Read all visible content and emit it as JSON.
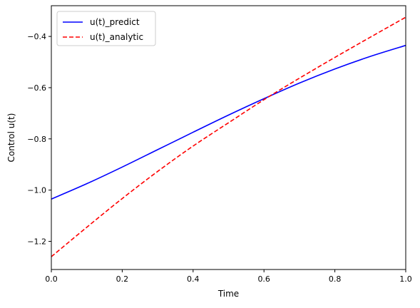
{
  "chart_data": {
    "type": "line",
    "title": "",
    "xlabel": "Time",
    "ylabel": "Control u(t)",
    "xlim": [
      0.0,
      1.0
    ],
    "ylim": [
      -1.31,
      -0.28
    ],
    "xticks": [
      0.0,
      0.2,
      0.4,
      0.6,
      0.8,
      1.0
    ],
    "xtick_labels": [
      "0.0",
      "0.2",
      "0.4",
      "0.6",
      "0.8",
      "1.0"
    ],
    "yticks": [
      -1.2,
      -1.0,
      -0.8,
      -0.6,
      -0.4
    ],
    "ytick_labels": [
      "−1.2",
      "−1.0",
      "−0.8",
      "−0.6",
      "−0.4"
    ],
    "grid": false,
    "legend_position": "top-left",
    "x": [
      0.0,
      0.1,
      0.2,
      0.3,
      0.4,
      0.5,
      0.6,
      0.7,
      0.8,
      0.9,
      1.0
    ],
    "series": [
      {
        "name": "u(t)_predict",
        "color": "#0000ff",
        "style": "solid",
        "values": [
          -1.035,
          -0.975,
          -0.91,
          -0.842,
          -0.774,
          -0.707,
          -0.643,
          -0.582,
          -0.527,
          -0.478,
          -0.435
        ]
      },
      {
        "name": "u(t)_analytic",
        "color": "#ff0000",
        "style": "dashed",
        "values": [
          -1.26,
          -1.145,
          -1.033,
          -0.927,
          -0.828,
          -0.737,
          -0.647,
          -0.563,
          -0.482,
          -0.403,
          -0.325
        ]
      }
    ]
  }
}
